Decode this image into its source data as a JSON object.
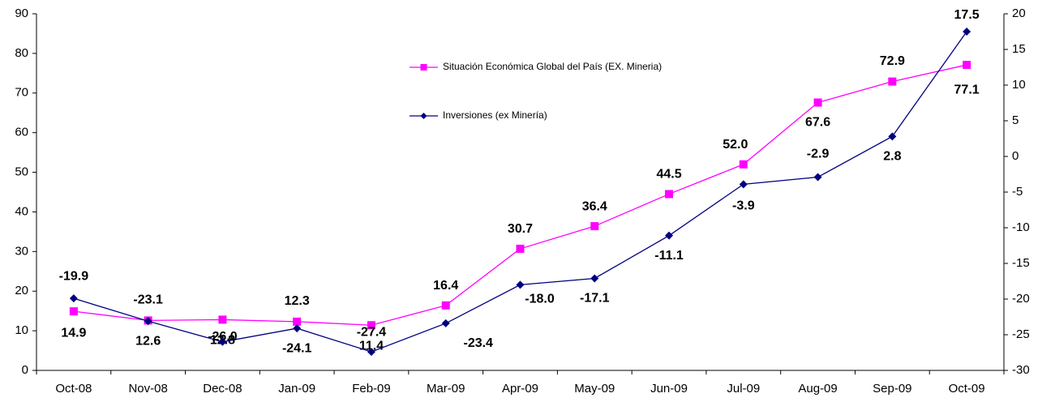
{
  "chart_data": {
    "type": "line",
    "categories": [
      "Oct-08",
      "Nov-08",
      "Dec-08",
      "Jan-09",
      "Feb-09",
      "Mar-09",
      "Apr-09",
      "May-09",
      "Jun-09",
      "Jul-09",
      "Aug-09",
      "Sep-09",
      "Oct-09"
    ],
    "series": [
      {
        "name": "Situación Económica Global del País (EX. Mineria)",
        "color": "#ff00ff",
        "marker": "square",
        "label_color": "#ff00ff",
        "values": [
          14.9,
          12.6,
          12.8,
          12.3,
          11.4,
          16.4,
          30.7,
          36.4,
          44.5,
          52.0,
          67.6,
          72.9,
          77.1
        ],
        "value_labels": [
          "14.9",
          "12.6",
          "12.8",
          "12.3",
          "11.4",
          "16.4",
          "30.7",
          "36.4",
          "44.5",
          "52.0",
          "67.6",
          "72.9",
          "77.1"
        ]
      },
      {
        "name": "Inversiones (ex Minería)",
        "color": "#000080",
        "marker": "diamond",
        "label_color": "#0000ff",
        "axis": "y2",
        "values": [
          -19.9,
          -23.1,
          -26.0,
          -24.1,
          -27.4,
          -23.4,
          -18.0,
          -17.1,
          -11.1,
          -3.9,
          -2.9,
          2.8,
          17.5
        ],
        "value_labels": [
          "-19.9",
          "-23.1",
          "-26.0",
          "-24.1",
          "-27.4",
          "-23.4",
          "-18.0",
          "-17.1",
          "-11.1",
          "-3.9",
          "-2.9",
          "2.8",
          "17.5"
        ]
      }
    ],
    "ylim": [
      0,
      90
    ],
    "yticks": [
      0,
      10,
      20,
      30,
      40,
      50,
      60,
      70,
      80,
      90
    ],
    "y2lim": [
      -30,
      20
    ],
    "y2ticks": [
      -30,
      -25,
      -20,
      -15,
      -10,
      -5,
      0,
      5,
      10,
      15,
      20
    ],
    "grid": false
  }
}
